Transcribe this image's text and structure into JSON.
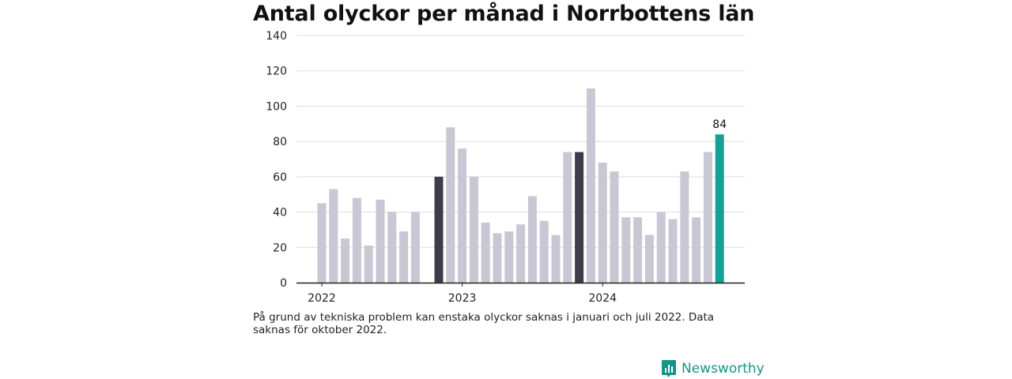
{
  "title": "Antal olyckor per månad i Norrbottens län",
  "footnote": "På grund av tekniska problem kan enstaka olyckor saknas i januari och juli 2022. Data saknas för oktober 2022.",
  "brand": {
    "name": "Newsworthy",
    "icon": "newsworthy-logo-icon",
    "color": "#17948a"
  },
  "colors": {
    "default_bar": "#c8c7d3",
    "highlight_bar": "#3d3c48",
    "latest_bar": "#16a095",
    "grid": "#dddddd",
    "axis": "#222222"
  },
  "chart_data": {
    "type": "bar",
    "title": "Antal olyckor per månad i Norrbottens län",
    "xlabel": "",
    "ylabel": "",
    "ylim": [
      0,
      140
    ],
    "yticks": [
      0,
      20,
      40,
      60,
      80,
      100,
      120,
      140
    ],
    "xtick_labels": [
      {
        "label": "2022",
        "index": 0
      },
      {
        "label": "2023",
        "index": 12
      },
      {
        "label": "2024",
        "index": 24
      }
    ],
    "grid": true,
    "categories": [
      "2022-01",
      "2022-02",
      "2022-03",
      "2022-04",
      "2022-05",
      "2022-06",
      "2022-07",
      "2022-08",
      "2022-09",
      "2022-10",
      "2022-11",
      "2022-12",
      "2023-01",
      "2023-02",
      "2023-03",
      "2023-04",
      "2023-05",
      "2023-06",
      "2023-07",
      "2023-08",
      "2023-09",
      "2023-10",
      "2023-11",
      "2023-12",
      "2024-01",
      "2024-02",
      "2024-03",
      "2024-04",
      "2024-05",
      "2024-06",
      "2024-07",
      "2024-08",
      "2024-09",
      "2024-10",
      "2024-11"
    ],
    "values": [
      45,
      53,
      25,
      48,
      21,
      47,
      40,
      29,
      40,
      null,
      60,
      88,
      76,
      60,
      34,
      28,
      29,
      33,
      49,
      35,
      27,
      74,
      74,
      110,
      68,
      63,
      37,
      37,
      27,
      40,
      36,
      63,
      37,
      74,
      84
    ],
    "highlight_indices": [
      10,
      22
    ],
    "latest_index": 34,
    "data_labels": [
      {
        "index": 34,
        "text": "84"
      }
    ]
  }
}
